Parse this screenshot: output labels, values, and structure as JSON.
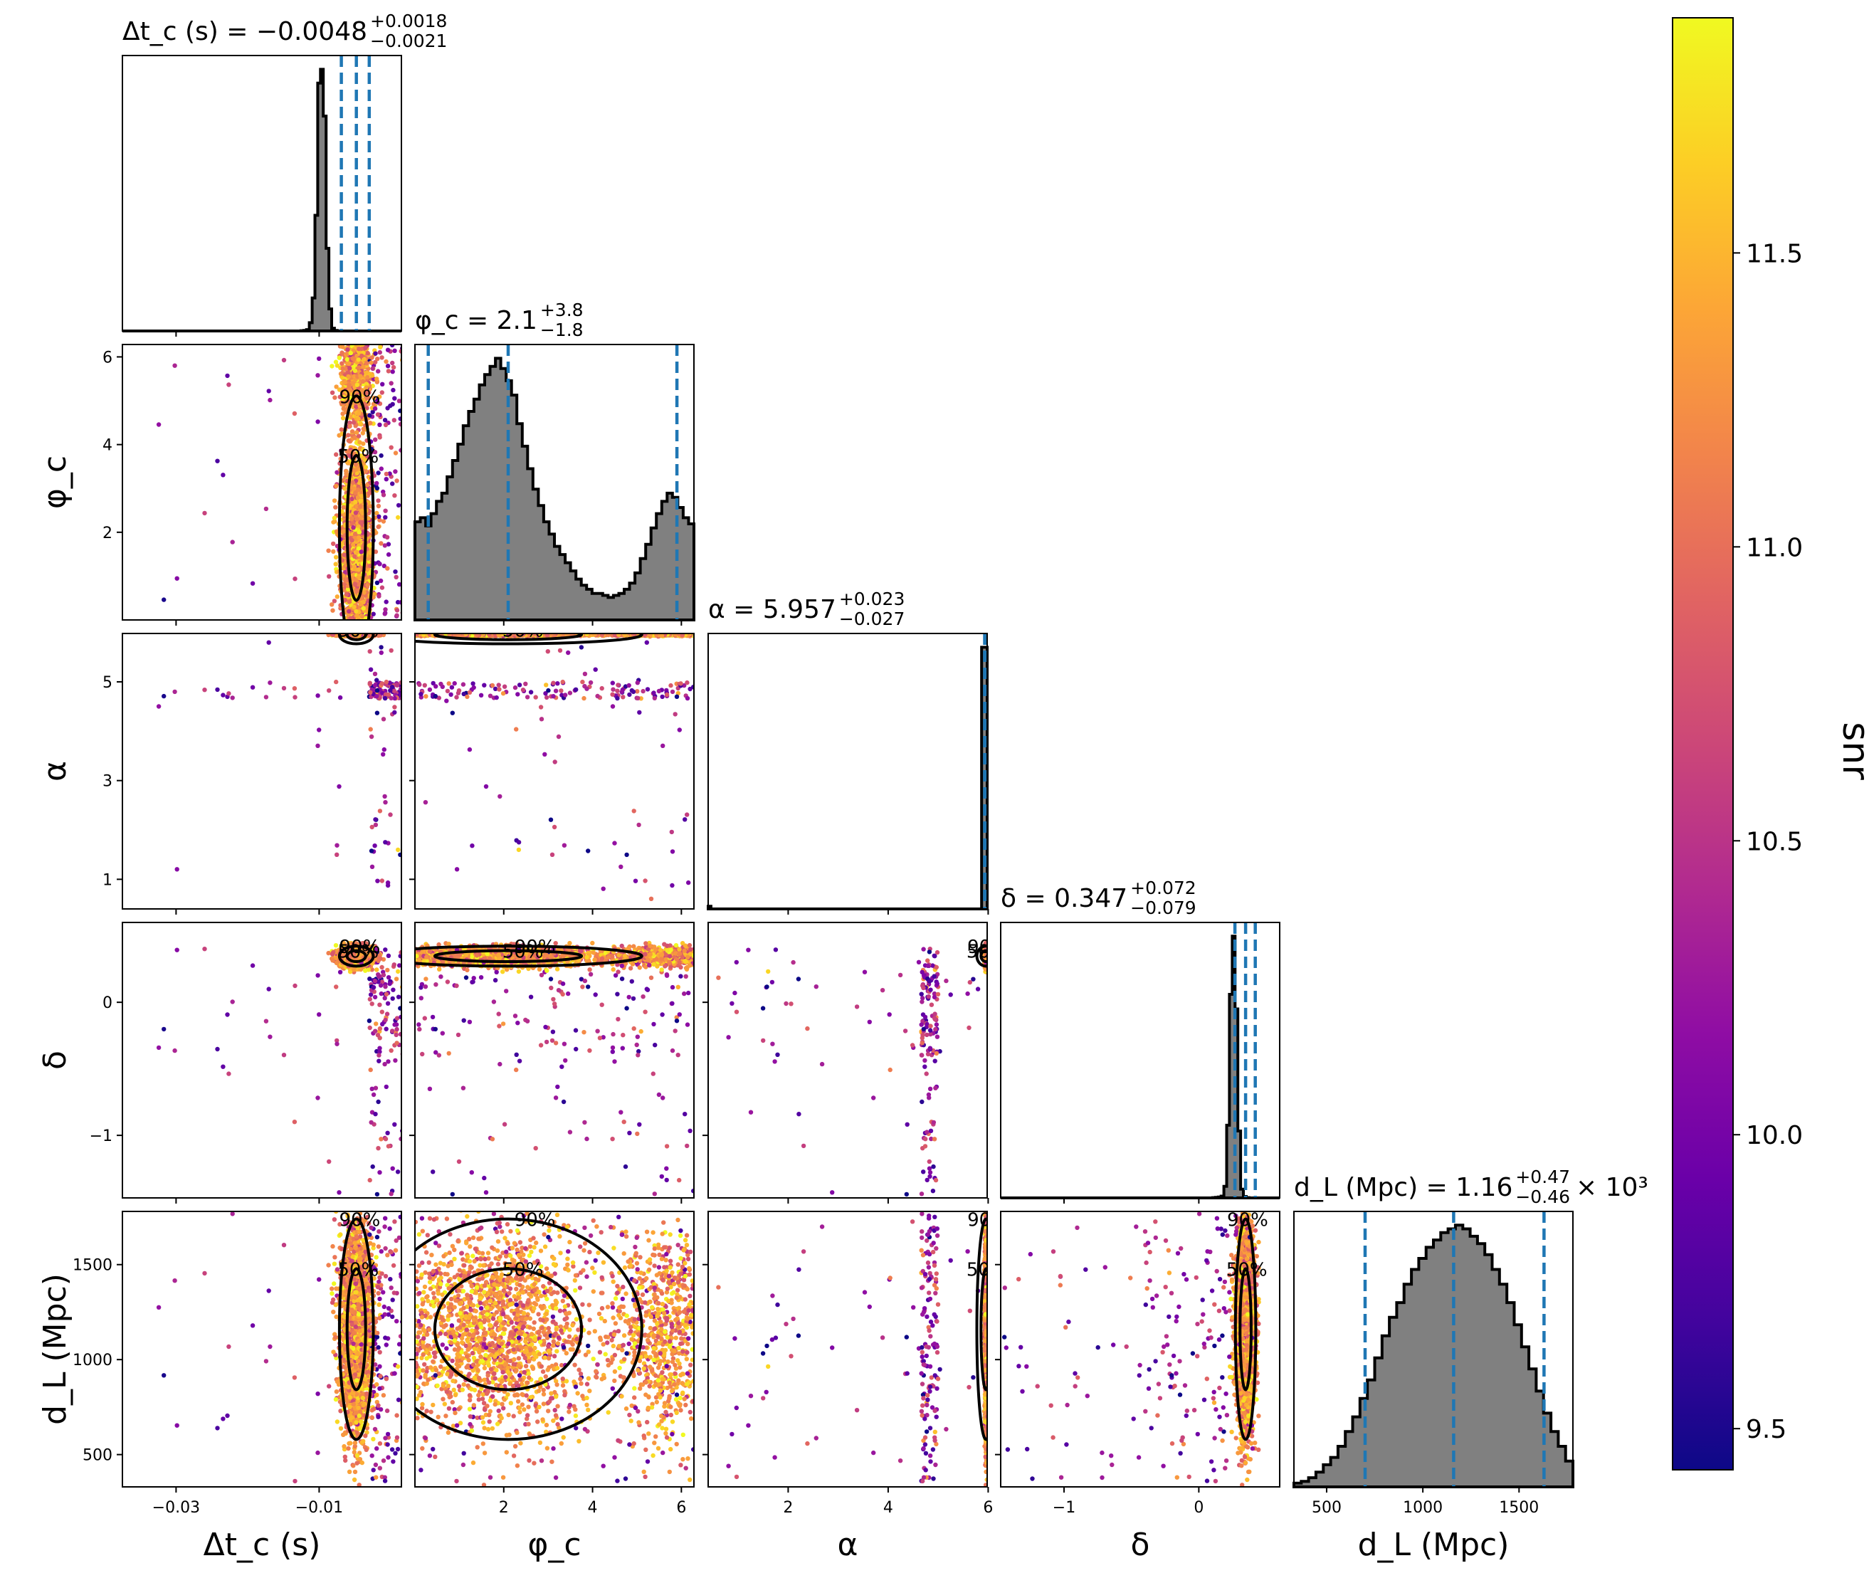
{
  "chart_data": {
    "type": "scatter",
    "kind": "corner plot",
    "parameters": [
      "dtc",
      "phic",
      "alpha",
      "delta",
      "dL"
    ],
    "axis_labels": {
      "dtc": "Δt_c (s)",
      "phic": "φ_c",
      "alpha": "α",
      "delta": "δ",
      "dL": "d_L (Mpc)"
    },
    "axis_ranges": {
      "dtc": [
        -0.0375,
        0.0015
      ],
      "phic": [
        0.0,
        6.283
      ],
      "alpha": [
        0.4,
        5.98
      ],
      "delta": [
        -1.47,
        0.6
      ],
      "dL": [
        330,
        1780
      ]
    },
    "x_ticks": {
      "dtc": [
        -0.03,
        -0.01
      ],
      "phic": [
        2,
        4,
        6
      ],
      "alpha": [
        2,
        4,
        6
      ],
      "delta": [
        -1,
        0
      ],
      "dL": [
        500,
        1000,
        1500
      ]
    },
    "x_tick_labels": {
      "dtc": [
        "−0.03",
        "−0.01"
      ],
      "phic": [
        "2",
        "4",
        "6"
      ],
      "alpha": [
        "2",
        "4",
        "6"
      ],
      "delta": [
        "−1",
        "0"
      ],
      "dL": [
        "500",
        "1000",
        "1500"
      ]
    },
    "y_ticks": {
      "phic": [
        2,
        4,
        6
      ],
      "alpha": [
        1,
        3,
        5
      ],
      "delta": [
        -1,
        0
      ],
      "dL": [
        500,
        1000,
        1500
      ]
    },
    "y_tick_labels": {
      "phic": [
        "2",
        "4",
        "6"
      ],
      "alpha": [
        "1",
        "3",
        "5"
      ],
      "delta": [
        "−1",
        "0"
      ],
      "dL": [
        "500",
        "1000",
        "1500"
      ]
    },
    "titles": {
      "dtc": {
        "main": "Δt_c (s) = −0.0048",
        "up": "+0.0018",
        "down": "−0.0021",
        "suffix": ""
      },
      "phic": {
        "main": "φ_c = 2.1",
        "up": "+3.8",
        "down": "−1.8",
        "suffix": ""
      },
      "alpha": {
        "main": "α = 5.957",
        "up": "+0.023",
        "down": "−0.027",
        "suffix": ""
      },
      "delta": {
        "main": "δ = 0.347",
        "up": "+0.072",
        "down": "−0.079",
        "suffix": ""
      },
      "dL": {
        "main": "d_L (Mpc) = 1.16",
        "up": "+0.47",
        "down": "−0.46",
        "suffix": "× 10³"
      }
    },
    "medians": {
      "dtc": -0.0048,
      "phic": 2.1,
      "alpha": 5.957,
      "delta": 0.347,
      "dL": 1160
    },
    "quantile_lines": {
      "dtc": [
        -0.0069,
        -0.0048,
        -0.003
      ],
      "phic": [
        0.3,
        2.1,
        5.9
      ],
      "alpha": [
        5.93,
        5.957,
        5.98
      ],
      "delta": [
        0.268,
        0.347,
        0.419
      ],
      "dL": [
        700,
        1160,
        1630
      ]
    },
    "histograms": {
      "dtc": {
        "edges": [
          -0.0375,
          0.0015
        ],
        "values": [
          0,
          0,
          0,
          0,
          0,
          0,
          0,
          0,
          0,
          0,
          0,
          0,
          0,
          0,
          0,
          0,
          0,
          0,
          0,
          0,
          0,
          0,
          0,
          0,
          0,
          0,
          0,
          0,
          0,
          0,
          0,
          0,
          0,
          0,
          0,
          0,
          0,
          0,
          0,
          0,
          0,
          0,
          0,
          0,
          0,
          0,
          0,
          0,
          0,
          0,
          0,
          0,
          0,
          0,
          0,
          0,
          0,
          0,
          0,
          0,
          0,
          0,
          0,
          0,
          1,
          2,
          5,
          30,
          120,
          420,
          900,
          950,
          780,
          300,
          80,
          10,
          2,
          0,
          0,
          0,
          0,
          0,
          0,
          0,
          0,
          0,
          0,
          0,
          0,
          0,
          0,
          0,
          0,
          0,
          0,
          0,
          0,
          0,
          0,
          0
        ]
      },
      "phic": {
        "edges": [
          0.0,
          6.283
        ],
        "values": [
          48,
          50,
          46,
          52,
          58,
          62,
          70,
          78,
          86,
          95,
          102,
          108,
          115,
          120,
          124,
          128,
          123,
          117,
          110,
          96,
          85,
          74,
          64,
          56,
          48,
          42,
          36,
          32,
          28,
          24,
          20,
          17,
          15,
          13,
          13,
          12,
          11,
          12,
          13,
          15,
          18,
          23,
          30,
          37,
          45,
          52,
          58,
          62,
          60,
          55,
          50,
          47
        ]
      },
      "alpha": {
        "edges": [
          0.4,
          5.98
        ],
        "values": [
          1,
          0,
          0,
          0,
          0,
          0,
          0,
          0,
          0,
          0,
          0,
          0,
          0,
          0,
          0,
          0,
          0,
          0,
          0,
          0,
          0,
          0,
          0,
          0,
          0,
          0,
          0,
          0,
          0,
          0,
          0,
          0,
          0,
          0,
          0,
          0,
          0,
          0,
          0,
          0,
          0,
          0,
          0,
          0,
          0,
          0,
          0,
          0,
          0,
          0,
          0,
          0,
          0,
          0,
          0,
          0,
          0,
          0,
          0,
          0,
          0,
          0,
          0,
          0,
          0,
          0,
          0,
          0,
          0,
          0,
          0,
          0,
          0,
          0,
          0,
          0,
          0,
          0,
          0,
          0,
          0,
          0,
          0,
          0,
          0,
          0,
          0,
          0,
          0,
          0,
          0,
          0,
          0,
          0,
          0,
          0,
          0,
          0,
          100,
          100
        ]
      },
      "delta": {
        "edges": [
          -1.47,
          0.6
        ],
        "values": [
          0,
          0,
          0,
          0,
          0,
          0,
          0,
          0,
          0,
          0,
          0,
          0,
          0,
          0,
          0,
          0,
          0,
          0,
          0,
          0,
          0,
          0,
          0,
          0,
          0,
          0,
          0,
          0,
          0,
          0,
          0,
          0,
          0,
          0,
          0,
          0,
          0,
          0,
          0,
          0,
          0,
          0,
          0,
          0,
          0,
          0,
          0,
          0,
          0,
          0,
          0,
          0,
          0,
          0,
          0,
          0,
          0,
          0,
          0,
          0,
          0,
          0,
          0,
          0,
          0,
          0,
          0,
          0,
          0,
          0,
          0,
          0,
          0,
          0,
          0,
          0,
          1,
          2,
          3,
          6,
          40,
          250,
          700,
          900,
          650,
          230,
          30,
          5,
          1,
          0,
          0,
          0,
          0,
          0,
          0,
          0,
          0,
          0,
          0,
          0
        ]
      },
      "dL": {
        "edges": [
          330,
          1780
        ],
        "values": [
          2,
          3,
          5,
          8,
          12,
          16,
          22,
          30,
          38,
          48,
          58,
          70,
          82,
          92,
          100,
          110,
          118,
          124,
          130,
          134,
          138,
          140,
          142,
          140,
          136,
          132,
          126,
          118,
          110,
          100,
          88,
          76,
          64,
          52,
          40,
          30,
          22,
          14
        ]
      }
    },
    "contour_levels": [
      "50%",
      "90%"
    ],
    "colorbar": {
      "label": "snr",
      "range": [
        9.43,
        11.9
      ],
      "ticks": [
        9.5,
        10.0,
        10.5,
        11.0,
        11.5
      ],
      "tick_labels": [
        "9.5",
        "10.0",
        "10.5",
        "11.0",
        "11.5"
      ],
      "colormap": "plasma"
    },
    "colors": {
      "histogram_fill": "#808080",
      "histogram_edge": "#000000",
      "quantile_line": "#1f77b4",
      "contour": "#000000"
    }
  }
}
